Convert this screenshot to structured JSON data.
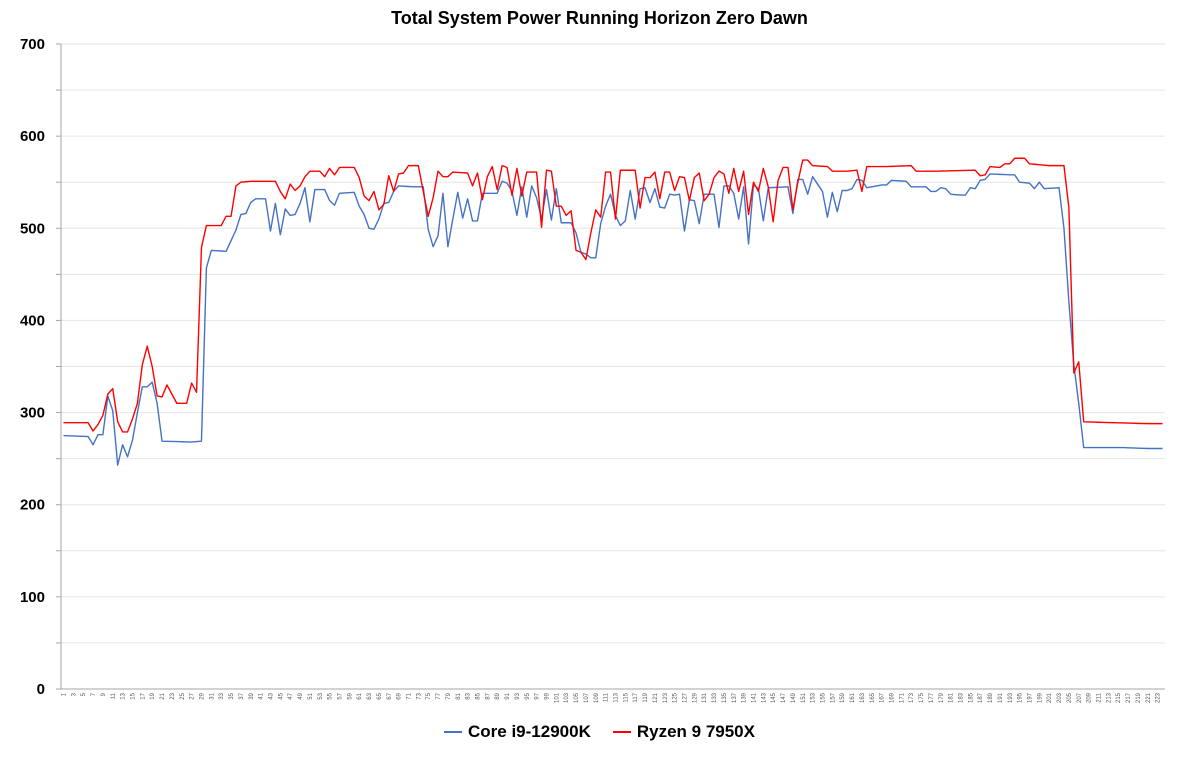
{
  "chart_data": {
    "type": "line",
    "title": "Total System Power Running Horizon Zero Dawn",
    "xlabel": "",
    "ylabel": "",
    "ylim": [
      0,
      700
    ],
    "yticks": [
      0,
      100,
      200,
      300,
      400,
      500,
      600,
      700
    ],
    "grid": true,
    "legend_position": "bottom",
    "x_first": 1,
    "x_last": 224,
    "x_tick_step": 2,
    "series": [
      {
        "name": "Core i9-12900K",
        "color": "#4472C4",
        "keypoints": [
          [
            1,
            275
          ],
          [
            6,
            274
          ],
          [
            7,
            265
          ],
          [
            8,
            276
          ],
          [
            9,
            276
          ],
          [
            10,
            318
          ],
          [
            11,
            302
          ],
          [
            12,
            243
          ],
          [
            13,
            265
          ],
          [
            14,
            252
          ],
          [
            15,
            270
          ],
          [
            16,
            300
          ],
          [
            17,
            328
          ],
          [
            18,
            328
          ],
          [
            19,
            333
          ],
          [
            20,
            310
          ],
          [
            21,
            269
          ],
          [
            27,
            268
          ],
          [
            29,
            269
          ],
          [
            30,
            457
          ],
          [
            31,
            476
          ],
          [
            34,
            475
          ],
          [
            36,
            498
          ],
          [
            37,
            515
          ],
          [
            38,
            516
          ],
          [
            39,
            528
          ],
          [
            40,
            532
          ],
          [
            42,
            532
          ],
          [
            43,
            497
          ],
          [
            44,
            527
          ],
          [
            45,
            493
          ],
          [
            46,
            521
          ],
          [
            47,
            514
          ],
          [
            48,
            515
          ],
          [
            49,
            527
          ],
          [
            50,
            544
          ],
          [
            51,
            507
          ],
          [
            52,
            542
          ],
          [
            54,
            542
          ],
          [
            55,
            530
          ],
          [
            56,
            525
          ],
          [
            57,
            538
          ],
          [
            60,
            539
          ],
          [
            61,
            524
          ],
          [
            62,
            515
          ],
          [
            63,
            500
          ],
          [
            64,
            499
          ],
          [
            65,
            510
          ],
          [
            66,
            527
          ],
          [
            67,
            528
          ],
          [
            68,
            540
          ],
          [
            69,
            546
          ],
          [
            72,
            545
          ],
          [
            74,
            545
          ],
          [
            75,
            499
          ],
          [
            76,
            480
          ],
          [
            77,
            492
          ],
          [
            78,
            538
          ],
          [
            79,
            480
          ],
          [
            80,
            510
          ],
          [
            81,
            539
          ],
          [
            82,
            511
          ],
          [
            83,
            532
          ],
          [
            84,
            508
          ],
          [
            85,
            508
          ],
          [
            86,
            538
          ],
          [
            89,
            538
          ],
          [
            90,
            551
          ],
          [
            91,
            549
          ],
          [
            92,
            540
          ],
          [
            93,
            514
          ],
          [
            94,
            545
          ],
          [
            95,
            512
          ],
          [
            96,
            546
          ],
          [
            97,
            533
          ],
          [
            98,
            510
          ],
          [
            99,
            542
          ],
          [
            100,
            509
          ],
          [
            101,
            543
          ],
          [
            102,
            506
          ],
          [
            104,
            506
          ],
          [
            105,
            495
          ],
          [
            106,
            474
          ],
          [
            107,
            472
          ],
          [
            108,
            468
          ],
          [
            109,
            468
          ],
          [
            110,
            505
          ],
          [
            111,
            524
          ],
          [
            112,
            537
          ],
          [
            113,
            514
          ],
          [
            114,
            503
          ],
          [
            115,
            508
          ],
          [
            116,
            541
          ],
          [
            117,
            510
          ],
          [
            118,
            543
          ],
          [
            119,
            544
          ],
          [
            120,
            528
          ],
          [
            121,
            543
          ],
          [
            122,
            523
          ],
          [
            123,
            522
          ],
          [
            124,
            537
          ],
          [
            125,
            536
          ],
          [
            126,
            537
          ],
          [
            127,
            497
          ],
          [
            128,
            531
          ],
          [
            129,
            530
          ],
          [
            130,
            505
          ],
          [
            131,
            537
          ],
          [
            133,
            537
          ],
          [
            134,
            501
          ],
          [
            135,
            546
          ],
          [
            136,
            546
          ],
          [
            137,
            538
          ],
          [
            138,
            510
          ],
          [
            139,
            545
          ],
          [
            140,
            483
          ],
          [
            141,
            547
          ],
          [
            142,
            543
          ],
          [
            143,
            508
          ],
          [
            144,
            544
          ],
          [
            148,
            545
          ],
          [
            149,
            516
          ],
          [
            150,
            553
          ],
          [
            151,
            553
          ],
          [
            152,
            537
          ],
          [
            153,
            556
          ],
          [
            154,
            548
          ],
          [
            155,
            540
          ],
          [
            156,
            512
          ],
          [
            157,
            539
          ],
          [
            158,
            518
          ],
          [
            159,
            541
          ],
          [
            160,
            541
          ],
          [
            161,
            543
          ],
          [
            162,
            553
          ],
          [
            163,
            552
          ],
          [
            164,
            544
          ],
          [
            167,
            547
          ],
          [
            168,
            547
          ],
          [
            169,
            552
          ],
          [
            172,
            551
          ],
          [
            173,
            545
          ],
          [
            175,
            545
          ],
          [
            176,
            545
          ],
          [
            177,
            540
          ],
          [
            178,
            540
          ],
          [
            179,
            544
          ],
          [
            180,
            543
          ],
          [
            181,
            537
          ],
          [
            183,
            536
          ],
          [
            184,
            536
          ],
          [
            185,
            544
          ],
          [
            186,
            543
          ],
          [
            187,
            552
          ],
          [
            188,
            553
          ],
          [
            189,
            559
          ],
          [
            193,
            558
          ],
          [
            194,
            558
          ],
          [
            195,
            550
          ],
          [
            197,
            549
          ],
          [
            198,
            543
          ],
          [
            199,
            550
          ],
          [
            200,
            543
          ],
          [
            203,
            544
          ],
          [
            204,
            500
          ],
          [
            205,
            420
          ],
          [
            206,
            352
          ],
          [
            207,
            310
          ],
          [
            208,
            262
          ],
          [
            216,
            262
          ],
          [
            221,
            261
          ],
          [
            224,
            261
          ]
        ]
      },
      {
        "name": "Ryzen 9 7950X",
        "color": "#FF0000",
        "keypoints": [
          [
            1,
            289
          ],
          [
            4,
            289
          ],
          [
            6,
            289
          ],
          [
            7,
            280
          ],
          [
            8,
            287
          ],
          [
            9,
            297
          ],
          [
            10,
            320
          ],
          [
            11,
            326
          ],
          [
            12,
            290
          ],
          [
            13,
            279
          ],
          [
            14,
            279
          ],
          [
            15,
            293
          ],
          [
            16,
            310
          ],
          [
            17,
            352
          ],
          [
            18,
            372
          ],
          [
            19,
            350
          ],
          [
            20,
            318
          ],
          [
            21,
            317
          ],
          [
            22,
            330
          ],
          [
            23,
            320
          ],
          [
            24,
            310
          ],
          [
            26,
            310
          ],
          [
            27,
            332
          ],
          [
            28,
            322
          ],
          [
            29,
            479
          ],
          [
            30,
            503
          ],
          [
            32,
            503
          ],
          [
            33,
            503
          ],
          [
            34,
            513
          ],
          [
            35,
            513
          ],
          [
            36,
            546
          ],
          [
            37,
            550
          ],
          [
            39,
            551
          ],
          [
            44,
            551
          ],
          [
            45,
            540
          ],
          [
            46,
            532
          ],
          [
            47,
            548
          ],
          [
            48,
            541
          ],
          [
            49,
            546
          ],
          [
            50,
            556
          ],
          [
            51,
            562
          ],
          [
            53,
            562
          ],
          [
            54,
            556
          ],
          [
            55,
            565
          ],
          [
            56,
            558
          ],
          [
            57,
            566
          ],
          [
            60,
            566
          ],
          [
            61,
            555
          ],
          [
            62,
            535
          ],
          [
            63,
            530
          ],
          [
            64,
            540
          ],
          [
            65,
            520
          ],
          [
            66,
            526
          ],
          [
            67,
            557
          ],
          [
            68,
            540
          ],
          [
            69,
            559
          ],
          [
            70,
            560
          ],
          [
            71,
            568
          ],
          [
            73,
            568
          ],
          [
            74,
            540
          ],
          [
            75,
            513
          ],
          [
            76,
            533
          ],
          [
            77,
            562
          ],
          [
            78,
            556
          ],
          [
            79,
            556
          ],
          [
            80,
            561
          ],
          [
            83,
            560
          ],
          [
            84,
            546
          ],
          [
            85,
            560
          ],
          [
            86,
            531
          ],
          [
            87,
            556
          ],
          [
            88,
            567
          ],
          [
            89,
            542
          ],
          [
            90,
            568
          ],
          [
            91,
            566
          ],
          [
            92,
            536
          ],
          [
            93,
            565
          ],
          [
            94,
            535
          ],
          [
            95,
            561
          ],
          [
            97,
            561
          ],
          [
            98,
            501
          ],
          [
            99,
            563
          ],
          [
            100,
            562
          ],
          [
            101,
            524
          ],
          [
            102,
            524
          ],
          [
            103,
            514
          ],
          [
            104,
            519
          ],
          [
            105,
            476
          ],
          [
            106,
            474
          ],
          [
            107,
            466
          ],
          [
            108,
            495
          ],
          [
            109,
            520
          ],
          [
            110,
            512
          ],
          [
            111,
            561
          ],
          [
            112,
            561
          ],
          [
            113,
            510
          ],
          [
            114,
            563
          ],
          [
            117,
            563
          ],
          [
            118,
            522
          ],
          [
            119,
            555
          ],
          [
            120,
            555
          ],
          [
            121,
            561
          ],
          [
            122,
            532
          ],
          [
            123,
            561
          ],
          [
            124,
            561
          ],
          [
            125,
            541
          ],
          [
            126,
            556
          ],
          [
            127,
            555
          ],
          [
            128,
            530
          ],
          [
            129,
            555
          ],
          [
            130,
            560
          ],
          [
            131,
            530
          ],
          [
            132,
            537
          ],
          [
            133,
            555
          ],
          [
            134,
            562
          ],
          [
            135,
            559
          ],
          [
            136,
            538
          ],
          [
            137,
            565
          ],
          [
            138,
            540
          ],
          [
            139,
            562
          ],
          [
            140,
            515
          ],
          [
            141,
            550
          ],
          [
            142,
            540
          ],
          [
            143,
            565
          ],
          [
            144,
            545
          ],
          [
            145,
            507
          ],
          [
            146,
            552
          ],
          [
            147,
            566
          ],
          [
            148,
            566
          ],
          [
            149,
            520
          ],
          [
            150,
            550
          ],
          [
            151,
            574
          ],
          [
            152,
            574
          ],
          [
            153,
            568
          ],
          [
            156,
            567
          ],
          [
            157,
            562
          ],
          [
            160,
            562
          ],
          [
            162,
            563
          ],
          [
            163,
            540
          ],
          [
            164,
            567
          ],
          [
            168,
            567
          ],
          [
            173,
            568
          ],
          [
            174,
            562
          ],
          [
            178,
            562
          ],
          [
            186,
            563
          ],
          [
            187,
            557
          ],
          [
            188,
            558
          ],
          [
            189,
            567
          ],
          [
            191,
            566
          ],
          [
            192,
            570
          ],
          [
            193,
            570
          ],
          [
            194,
            576
          ],
          [
            196,
            576
          ],
          [
            197,
            570
          ],
          [
            199,
            569
          ],
          [
            201,
            568
          ],
          [
            204,
            568
          ],
          [
            205,
            522
          ],
          [
            206,
            343
          ],
          [
            207,
            355
          ],
          [
            208,
            290
          ],
          [
            214,
            289
          ],
          [
            221,
            288
          ],
          [
            224,
            288
          ]
        ]
      }
    ]
  }
}
